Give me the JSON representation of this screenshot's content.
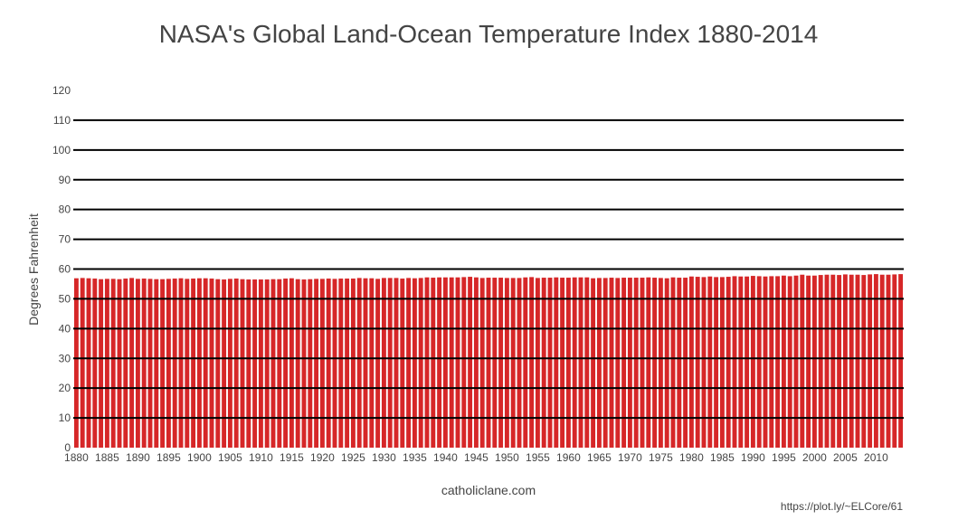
{
  "chart_data": {
    "type": "bar",
    "title": "NASA's Global Land-Ocean Temperature Index 1880-2014",
    "ylabel": "Degrees Fahrenheit",
    "xlabel": "catholiclane.com",
    "ylim": [
      0,
      120
    ],
    "ytick_labels": [
      "0",
      "10",
      "20",
      "30",
      "40",
      "50",
      "60",
      "70",
      "80",
      "90",
      "100",
      "110",
      "120"
    ],
    "xtick_labels": [
      "1880",
      "1885",
      "1890",
      "1895",
      "1900",
      "1905",
      "1910",
      "1915",
      "1920",
      "1925",
      "1930",
      "1935",
      "1940",
      "1945",
      "1950",
      "1955",
      "1960",
      "1965",
      "1970",
      "1975",
      "1980",
      "1985",
      "1990",
      "1995",
      "2000",
      "2005",
      "2010"
    ],
    "gridlines": [
      60,
      70,
      80,
      90,
      100,
      110
    ],
    "x_start": 1880,
    "x_end": 2014,
    "bar_color": "#d62728",
    "values": [
      56.9,
      57.0,
      56.9,
      56.8,
      56.6,
      56.7,
      56.7,
      56.6,
      56.8,
      57.0,
      56.7,
      56.8,
      56.7,
      56.6,
      56.6,
      56.7,
      56.8,
      56.9,
      56.7,
      56.8,
      56.9,
      56.9,
      56.8,
      56.6,
      56.5,
      56.7,
      56.8,
      56.6,
      56.5,
      56.5,
      56.5,
      56.5,
      56.6,
      56.6,
      56.8,
      56.9,
      56.6,
      56.5,
      56.6,
      56.7,
      56.7,
      56.8,
      56.7,
      56.8,
      56.8,
      56.8,
      57.0,
      56.9,
      56.9,
      56.7,
      57.0,
      57.0,
      57.0,
      56.8,
      57.0,
      56.9,
      57.0,
      57.2,
      57.1,
      57.2,
      57.2,
      57.2,
      57.2,
      57.3,
      57.4,
      57.2,
      57.0,
      57.1,
      57.1,
      57.1,
      57.0,
      57.0,
      57.0,
      57.2,
      57.3,
      57.0,
      57.1,
      57.1,
      57.2,
      57.1,
      57.1,
      57.2,
      57.2,
      57.2,
      56.9,
      57.0,
      57.0,
      57.1,
      57.0,
      57.1,
      57.1,
      57.1,
      57.1,
      57.2,
      57.1,
      57.0,
      56.9,
      57.2,
      57.1,
      57.1,
      57.5,
      57.4,
      57.3,
      57.5,
      57.3,
      57.3,
      57.4,
      57.6,
      57.5,
      57.5,
      57.7,
      57.6,
      57.5,
      57.6,
      57.6,
      57.8,
      57.6,
      57.8,
      58.1,
      57.8,
      57.8,
      58.0,
      58.1,
      58.1,
      58.0,
      58.2,
      58.1,
      58.1,
      58.0,
      58.2,
      58.3,
      58.1,
      58.1,
      58.2,
      58.3
    ]
  },
  "source": "catholiclane.com",
  "plotly_link": "https://plot.ly/~ELCore/61"
}
